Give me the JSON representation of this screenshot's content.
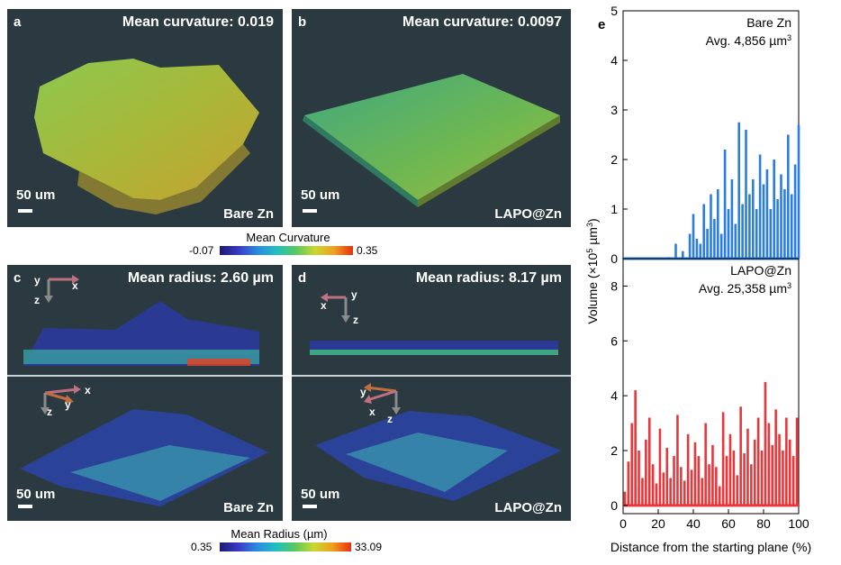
{
  "panels": {
    "a": {
      "label": "a",
      "title": "Mean curvature: 0.019",
      "scale": "50 um",
      "sample": "Bare Zn"
    },
    "b": {
      "label": "b",
      "title": "Mean curvature: 0.0097",
      "scale": "50 um",
      "sample": "LAPO@Zn"
    },
    "c": {
      "label": "c",
      "title": "Mean radius: 2.60 µm",
      "scale": "50 um",
      "sample": "Bare Zn",
      "axes_top": [
        "y",
        "x",
        "z"
      ],
      "axes_bottom": [
        "x",
        "y",
        "z"
      ]
    },
    "d": {
      "label": "d",
      "title": "Mean radius: 8.17 µm",
      "scale": "50 um",
      "sample": "LAPO@Zn",
      "axes_top": [
        "y",
        "x",
        "z"
      ],
      "axes_bottom": [
        "y",
        "x",
        "z"
      ]
    }
  },
  "colorbar_curvature": {
    "title": "Mean Curvature",
    "min": "-0.07",
    "max": "0.35"
  },
  "colorbar_radius": {
    "title": "Mean Radius (µm)",
    "min": "0.35",
    "max": "33.09"
  },
  "colors": {
    "bare": "#2a7de1",
    "lapo": "#e8363a",
    "panel_bg": "#2b3a40"
  },
  "chart_data": [
    {
      "type": "bar",
      "panel_label": "e",
      "title": "Bare Zn",
      "annotation_prefix": "Avg. 4,856 µm",
      "annotation_sup": "3",
      "x": [
        0,
        26,
        30,
        34,
        38,
        40,
        42,
        44,
        46,
        48,
        50,
        52,
        54,
        56,
        58,
        60,
        62,
        64,
        66,
        68,
        70,
        72,
        74,
        76,
        78,
        80,
        82,
        84,
        86,
        88,
        90,
        92,
        94,
        96,
        98,
        100
      ],
      "values": [
        0.02,
        0.03,
        0.3,
        0.15,
        0.5,
        0.9,
        0.4,
        0.3,
        1.1,
        0.6,
        1.3,
        0.8,
        1.4,
        0.5,
        2.2,
        1.0,
        1.6,
        0.7,
        2.75,
        1.1,
        2.6,
        1.3,
        1.6,
        1.0,
        2.1,
        1.5,
        1.8,
        1.0,
        2.0,
        1.2,
        1.7,
        1.4,
        2.5,
        1.3,
        1.9,
        2.7
      ],
      "ylim": [
        0,
        5
      ],
      "yticks": [
        0,
        1,
        2,
        3,
        4,
        5
      ],
      "xlim": [
        0,
        100
      ],
      "xticks": [
        0,
        20,
        40,
        60,
        80,
        100
      ]
    },
    {
      "type": "bar",
      "title": "LAPO@Zn",
      "annotation_prefix": "Avg. 25,358 µm",
      "annotation_sup": "3",
      "x": [
        1,
        3,
        5,
        7,
        9,
        11,
        13,
        15,
        17,
        19,
        21,
        23,
        25,
        27,
        29,
        31,
        33,
        35,
        37,
        39,
        41,
        43,
        45,
        47,
        49,
        51,
        53,
        55,
        57,
        59,
        61,
        63,
        65,
        67,
        69,
        71,
        73,
        75,
        77,
        79,
        81,
        83,
        85,
        87,
        89,
        91,
        93,
        95,
        97,
        99
      ],
      "values": [
        0.5,
        1.6,
        3.0,
        4.2,
        2.0,
        1.0,
        2.4,
        3.2,
        1.5,
        0.8,
        2.8,
        1.2,
        2.1,
        1.0,
        1.8,
        3.3,
        1.4,
        0.9,
        2.6,
        1.3,
        2.3,
        1.8,
        1.0,
        3.0,
        1.5,
        2.2,
        1.4,
        0.7,
        3.4,
        1.8,
        2.6,
        2.0,
        1.1,
        3.6,
        1.9,
        2.8,
        1.5,
        2.4,
        3.2,
        2.0,
        4.5,
        3.0,
        2.2,
        3.5,
        2.6,
        2.0,
        3.2,
        2.4,
        1.8,
        3.2
      ],
      "ylim": [
        -0.3,
        9
      ],
      "yticks": [
        0,
        2,
        4,
        6,
        8
      ],
      "xlim": [
        0,
        100
      ],
      "xticks": [
        0,
        20,
        40,
        60,
        80,
        100
      ],
      "xlabel": "Distance from the starting plane (%)",
      "ylabel_prefix": "Volume (×10",
      "ylabel_exp": "5",
      "ylabel_unit": " µm",
      "ylabel_sup": "3",
      "ylabel_suffix": ")"
    }
  ]
}
